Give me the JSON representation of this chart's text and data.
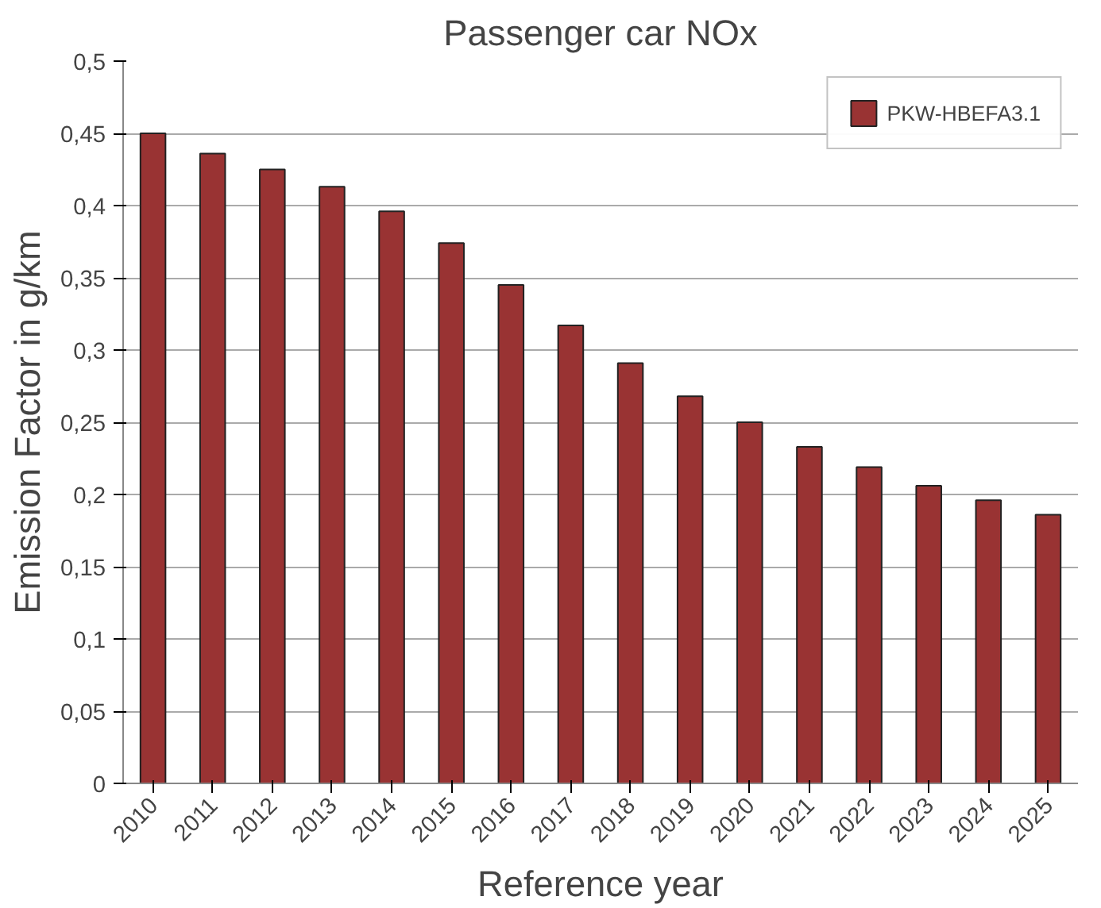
{
  "chart_data": {
    "type": "bar",
    "title": "Passenger car NOx",
    "xlabel": "Reference year",
    "ylabel": "Emission Factor in g/km",
    "categories": [
      "2010",
      "2011",
      "2012",
      "2013",
      "2014",
      "2015",
      "2016",
      "2017",
      "2018",
      "2019",
      "2020",
      "2021",
      "2022",
      "2023",
      "2024",
      "2025"
    ],
    "series": [
      {
        "name": "PKW-HBEFA3.1",
        "color": "#993333",
        "values": [
          0.45,
          0.436,
          0.425,
          0.413,
          0.396,
          0.374,
          0.345,
          0.317,
          0.291,
          0.268,
          0.25,
          0.233,
          0.219,
          0.206,
          0.196,
          0.186
        ]
      }
    ],
    "ylim": [
      0,
      0.5
    ],
    "yticks": [
      0,
      {
        "value": 0.05,
        "label": "0,05"
      },
      {
        "value": 0.1,
        "label": "0,1"
      },
      {
        "value": 0.15,
        "label": "0,15"
      },
      {
        "value": 0.2,
        "label": "0,2"
      },
      {
        "value": 0.25,
        "label": "0,25"
      },
      {
        "value": 0.3,
        "label": "0,3"
      },
      {
        "value": 0.35,
        "label": "0,35"
      },
      {
        "value": 0.4,
        "label": "0,4"
      },
      {
        "value": 0.45,
        "label": "0,45"
      },
      {
        "value": 0.5,
        "label": "0,5"
      }
    ],
    "grid": "y",
    "legend": "top right"
  }
}
